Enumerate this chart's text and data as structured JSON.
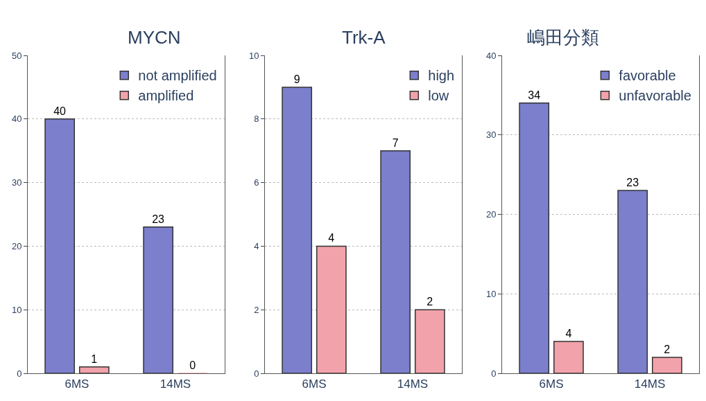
{
  "chart_data": [
    {
      "type": "bar",
      "title": "MYCN",
      "categories": [
        "6MS",
        "14MS"
      ],
      "series": [
        {
          "name": "not amplified",
          "color": "#7b7fcc",
          "values": [
            40,
            23
          ]
        },
        {
          "name": "amplified",
          "color": "#f2a2aa",
          "values": [
            1,
            0
          ]
        }
      ],
      "ylim": [
        0,
        50
      ],
      "yticks": [
        0,
        10,
        20,
        30,
        40,
        50
      ],
      "grid": "y",
      "legend": "top right",
      "data_labels": true
    },
    {
      "type": "bar",
      "title": "Trk-A",
      "categories": [
        "6MS",
        "14MS"
      ],
      "series": [
        {
          "name": "high",
          "color": "#7b7fcc",
          "values": [
            9,
            7
          ]
        },
        {
          "name": "low",
          "color": "#f2a2aa",
          "values": [
            4,
            2
          ]
        }
      ],
      "ylim": [
        0,
        10
      ],
      "yticks": [
        0,
        2,
        4,
        6,
        8,
        10
      ],
      "grid": "y",
      "legend": "top right",
      "data_labels": true
    },
    {
      "type": "bar",
      "title": "嶋田分類",
      "categories": [
        "6MS",
        "14MS"
      ],
      "series": [
        {
          "name": "favorable",
          "color": "#7b7fcc",
          "values": [
            34,
            23
          ]
        },
        {
          "name": "unfavorable",
          "color": "#f2a2aa",
          "values": [
            4,
            2
          ]
        }
      ],
      "ylim": [
        0,
        40
      ],
      "yticks": [
        0,
        10,
        20,
        30,
        40
      ],
      "grid": "y",
      "legend": "top right",
      "data_labels": true
    }
  ]
}
